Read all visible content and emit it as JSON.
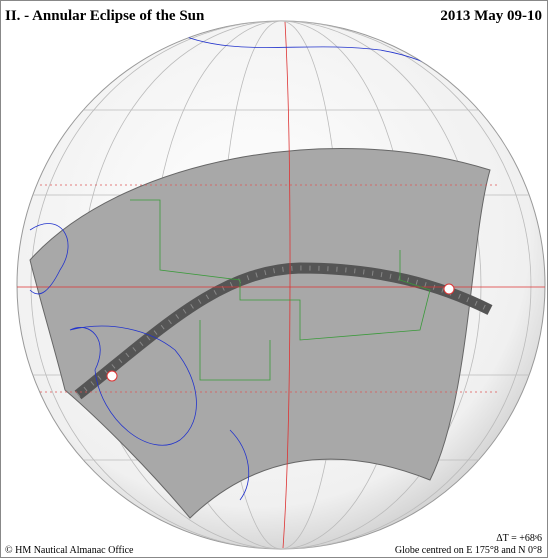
{
  "header": {
    "title": "II. - Annular Eclipse of the Sun",
    "date": "2013 May 09-10"
  },
  "footer": {
    "credit": "© HM Nautical Almanac Office",
    "delta_t": "ΔT = +68ˢ6",
    "globe_centre": "Globe centred on E 175°8 and N 0°8"
  }
}
